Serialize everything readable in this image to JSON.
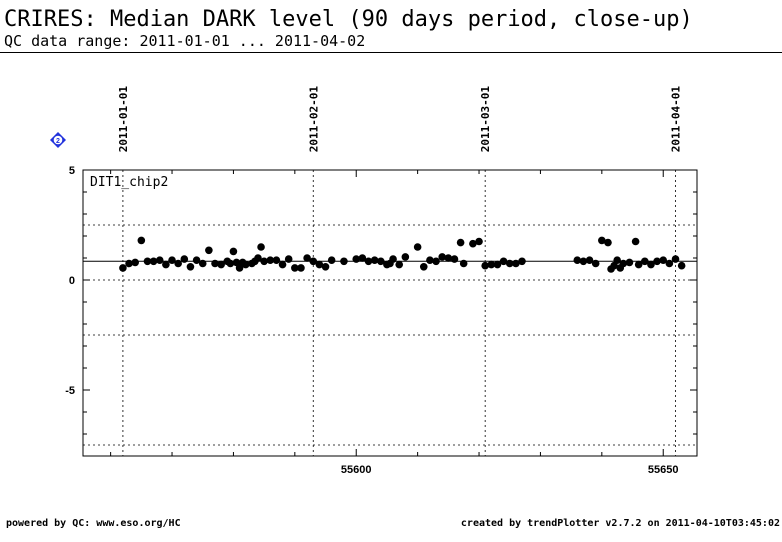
{
  "header": {
    "title": "CRIRES: Median DARK level (90 days period, close-up)",
    "subtitle": "QC data range: 2011-01-01 ... 2011-04-02"
  },
  "help_icon": {
    "glyph": "2",
    "color": "#2233dd"
  },
  "footer": {
    "left": "powered by QC: www.eso.org/HC",
    "right": "created by trendPlotter v2.7.2 on 2011-04-10T03:45:02"
  },
  "chart_data": {
    "type": "scatter",
    "panel_label": "DIT1_chip2",
    "xlim": [
      55555.5,
      55655.5
    ],
    "ylim": [
      -8,
      5
    ],
    "x_ticks": [
      55600,
      55650
    ],
    "y_ticks": [
      -5,
      0,
      5
    ],
    "grid": "dashed",
    "date_markers": [
      {
        "label": "2011-01-01",
        "x": 55562
      },
      {
        "label": "2011-02-01",
        "x": 55593
      },
      {
        "label": "2011-03-01",
        "x": 55621
      },
      {
        "label": "2011-04-01",
        "x": 55652
      }
    ],
    "reference_lines": [
      {
        "y": 0.85,
        "style": "solid"
      },
      {
        "y": 2.5,
        "style": "dotted"
      },
      {
        "y": 0.0,
        "style": "dotted"
      }
    ],
    "points": [
      {
        "x": 55562.0,
        "y": 0.55
      },
      {
        "x": 55563.0,
        "y": 0.75
      },
      {
        "x": 55564.0,
        "y": 0.8
      },
      {
        "x": 55565.0,
        "y": 1.8
      },
      {
        "x": 55566.0,
        "y": 0.85
      },
      {
        "x": 55567.0,
        "y": 0.85
      },
      {
        "x": 55568.0,
        "y": 0.9
      },
      {
        "x": 55569.0,
        "y": 0.7
      },
      {
        "x": 55570.0,
        "y": 0.9
      },
      {
        "x": 55571.0,
        "y": 0.75
      },
      {
        "x": 55572.0,
        "y": 0.95
      },
      {
        "x": 55573.0,
        "y": 0.6
      },
      {
        "x": 55574.0,
        "y": 0.9
      },
      {
        "x": 55575.0,
        "y": 0.75
      },
      {
        "x": 55576.0,
        "y": 1.35
      },
      {
        "x": 55577.0,
        "y": 0.75
      },
      {
        "x": 55578.0,
        "y": 0.7
      },
      {
        "x": 55579.0,
        "y": 0.85
      },
      {
        "x": 55579.5,
        "y": 0.75
      },
      {
        "x": 55580.0,
        "y": 1.3
      },
      {
        "x": 55580.5,
        "y": 0.8
      },
      {
        "x": 55581.0,
        "y": 0.55
      },
      {
        "x": 55581.5,
        "y": 0.8
      },
      {
        "x": 55582.0,
        "y": 0.7
      },
      {
        "x": 55583.0,
        "y": 0.75
      },
      {
        "x": 55583.5,
        "y": 0.85
      },
      {
        "x": 55584.0,
        "y": 1.0
      },
      {
        "x": 55584.5,
        "y": 1.5
      },
      {
        "x": 55585.0,
        "y": 0.85
      },
      {
        "x": 55586.0,
        "y": 0.9
      },
      {
        "x": 55587.0,
        "y": 0.9
      },
      {
        "x": 55588.0,
        "y": 0.7
      },
      {
        "x": 55589.0,
        "y": 0.95
      },
      {
        "x": 55590.0,
        "y": 0.55
      },
      {
        "x": 55591.0,
        "y": 0.55
      },
      {
        "x": 55592.0,
        "y": 1.0
      },
      {
        "x": 55593.0,
        "y": 0.85
      },
      {
        "x": 55594.0,
        "y": 0.7
      },
      {
        "x": 55595.0,
        "y": 0.6
      },
      {
        "x": 55596.0,
        "y": 0.9
      },
      {
        "x": 55598.0,
        "y": 0.85
      },
      {
        "x": 55600.0,
        "y": 0.95
      },
      {
        "x": 55601.0,
        "y": 1.0
      },
      {
        "x": 55602.0,
        "y": 0.85
      },
      {
        "x": 55603.0,
        "y": 0.9
      },
      {
        "x": 55604.0,
        "y": 0.85
      },
      {
        "x": 55605.0,
        "y": 0.7
      },
      {
        "x": 55605.5,
        "y": 0.75
      },
      {
        "x": 55606.0,
        "y": 0.95
      },
      {
        "x": 55607.0,
        "y": 0.7
      },
      {
        "x": 55608.0,
        "y": 1.05
      },
      {
        "x": 55610.0,
        "y": 1.5
      },
      {
        "x": 55611.0,
        "y": 0.6
      },
      {
        "x": 55612.0,
        "y": 0.9
      },
      {
        "x": 55613.0,
        "y": 0.85
      },
      {
        "x": 55614.0,
        "y": 1.05
      },
      {
        "x": 55615.0,
        "y": 1.0
      },
      {
        "x": 55616.0,
        "y": 0.95
      },
      {
        "x": 55617.0,
        "y": 1.7
      },
      {
        "x": 55617.5,
        "y": 0.75
      },
      {
        "x": 55619.0,
        "y": 1.65
      },
      {
        "x": 55620.0,
        "y": 1.75
      },
      {
        "x": 55621.0,
        "y": 0.65
      },
      {
        "x": 55622.0,
        "y": 0.7
      },
      {
        "x": 55623.0,
        "y": 0.7
      },
      {
        "x": 55624.0,
        "y": 0.85
      },
      {
        "x": 55625.0,
        "y": 0.75
      },
      {
        "x": 55626.0,
        "y": 0.75
      },
      {
        "x": 55627.0,
        "y": 0.85
      },
      {
        "x": 55636.0,
        "y": 0.9
      },
      {
        "x": 55637.0,
        "y": 0.85
      },
      {
        "x": 55638.0,
        "y": 0.9
      },
      {
        "x": 55639.0,
        "y": 0.75
      },
      {
        "x": 55640.0,
        "y": 1.8
      },
      {
        "x": 55641.0,
        "y": 1.7
      },
      {
        "x": 55641.5,
        "y": 0.5
      },
      {
        "x": 55642.0,
        "y": 0.65
      },
      {
        "x": 55642.5,
        "y": 0.9
      },
      {
        "x": 55643.0,
        "y": 0.55
      },
      {
        "x": 55643.5,
        "y": 0.75
      },
      {
        "x": 55644.5,
        "y": 0.8
      },
      {
        "x": 55645.5,
        "y": 1.75
      },
      {
        "x": 55646.0,
        "y": 0.7
      },
      {
        "x": 55647.0,
        "y": 0.85
      },
      {
        "x": 55648.0,
        "y": 0.7
      },
      {
        "x": 55649.0,
        "y": 0.85
      },
      {
        "x": 55650.0,
        "y": 0.9
      },
      {
        "x": 55651.0,
        "y": 0.75
      },
      {
        "x": 55652.0,
        "y": 0.95
      },
      {
        "x": 55653.0,
        "y": 0.65
      }
    ]
  }
}
